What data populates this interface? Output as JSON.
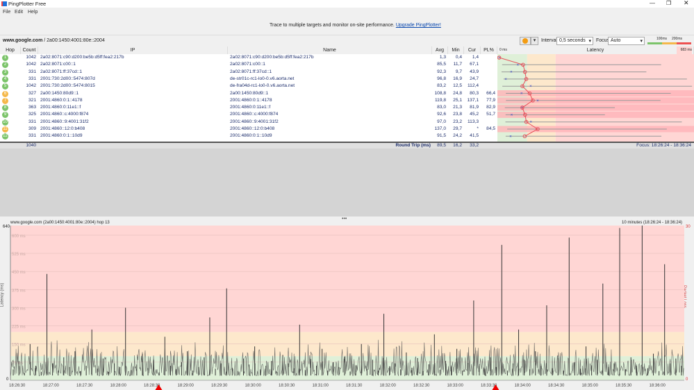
{
  "app": {
    "title": "PingPlotter Free",
    "menu": [
      "File",
      "Edit",
      "Help"
    ]
  },
  "banner": {
    "text": "Trace to multiple targets and monitor on-site performance.",
    "link": "Upgrade PingPlotter!"
  },
  "target": {
    "host": "www.google.com",
    "address": " / 2a00:1450:4001:80e::2004"
  },
  "toolbar": {
    "interval_label": "Interval",
    "interval_value": "0,5 seconds",
    "focus_label": "Focus",
    "focus_value": "Auto",
    "scale_100": "100ms",
    "scale_200": "200ms",
    "colors": {
      "good": "#7cc46a",
      "warn": "#f5b84a",
      "bad": "#ee5050"
    }
  },
  "columns": {
    "hop": "Hop",
    "count": "Count",
    "ip": "IP",
    "name": "Name",
    "avg": "Avg",
    "min": "Min",
    "cur": "Cur",
    "pl": "PL%",
    "latency": "Latency",
    "lat_min": "0 ms",
    "lat_max": "683 ms"
  },
  "hops": [
    {
      "hop": "1",
      "count": "1042",
      "ip": "2a02:8071:c90:d200:be5b:d5ff:fea2:217b",
      "name": "2a02:8071:c90:d200:be5b:d5ff:fea2:217b",
      "avg": "1,3",
      "min": "0,4",
      "cur": "1,4",
      "pl": "",
      "status": "good",
      "max_est": 2
    },
    {
      "hop": "2",
      "count": "1042",
      "ip": "2a02:8071:c00::1",
      "name": "2a02:8071:c00::1",
      "avg": "85,5",
      "min": "11,7",
      "cur": "67,1",
      "pl": "",
      "status": "good",
      "max_est": 572
    },
    {
      "hop": "3",
      "count": "331",
      "ip": "2a02:8071:ff:37cd::1",
      "name": "2a02:8071:ff:37cd::1",
      "avg": "92,3",
      "min": "9,7",
      "cur": "43,9",
      "pl": "",
      "status": "good",
      "max_est": 520
    },
    {
      "hop": "4",
      "count": "331",
      "ip": "2001:730:2d00::5474:807d",
      "name": "de-str01c-rc1-lo0-0.v6.aorta.net",
      "avg": "96,8",
      "min": "16,9",
      "cur": "24,7",
      "pl": "",
      "status": "good",
      "max_est": 663
    },
    {
      "hop": "5",
      "count": "1042",
      "ip": "2001:730:2d00::5474:8015",
      "name": "de-fra04d-rc1-lo0-0.v6.aorta.net",
      "avg": "83,2",
      "min": "12,5",
      "cur": "112,4",
      "pl": "",
      "status": "good",
      "max_est": 681
    },
    {
      "hop": "6",
      "count": "327",
      "ip": "2a00:1450:80d9::1",
      "name": "2a00:1450:80d9::1",
      "avg": "108,8",
      "min": "24,8",
      "cur": "80,3",
      "pl": "66,4",
      "status": "warn",
      "max_est": 606
    },
    {
      "hop": "7",
      "count": "321",
      "ip": "2001:4860:0:1::4178",
      "name": "2001:4860:0:1::4178",
      "avg": "119,8",
      "min": "25,1",
      "cur": "137,1",
      "pl": "77,9",
      "status": "warn",
      "max_est": 570
    },
    {
      "hop": "8",
      "count": "363",
      "ip": "2001:4860:0:11e1::f",
      "name": "2001:4860:0:11e1::f",
      "avg": "83,0",
      "min": "21,3",
      "cur": "81,9",
      "pl": "82,9",
      "status": "good",
      "max_est": 409
    },
    {
      "hop": "9",
      "count": "325",
      "ip": "2001:4860::c:4000:f874",
      "name": "2001:4860::c:4000:f874",
      "avg": "92,6",
      "min": "23,8",
      "cur": "45,2",
      "pl": "51,7",
      "status": "good",
      "max_est": 374
    },
    {
      "hop": "10",
      "count": "331",
      "ip": "2001:4860::9:4001:31f2",
      "name": "2001:4860::9:4001:31f2",
      "avg": "97,0",
      "min": "23,2",
      "cur": "113,3",
      "pl": "",
      "status": "good",
      "max_est": 645
    },
    {
      "hop": "11",
      "count": "309",
      "ip": "2001:4860::12:0:b408",
      "name": "2001:4860::12:0:b408",
      "avg": "137,0",
      "min": "29,7",
      "cur": "*",
      "pl": "84,5",
      "status": "warn",
      "max_est": 592
    },
    {
      "hop": "12",
      "count": "331",
      "ip": "2001:4860:0:1::10d9",
      "name": "2001:4860:0:1::10d9",
      "avg": "91,5",
      "min": "24,2",
      "cur": "41,5",
      "pl": "",
      "status": "good",
      "max_est": 573
    }
  ],
  "summary": {
    "count": "1040",
    "label": "Round Trip (ms)",
    "avg": "89,5",
    "min": "16,2",
    "cur": "33,2",
    "focus": "Focus: 18:26:24 - 18:36:24"
  },
  "graph": {
    "title": "www.google.com (2a00:1450:4001:80e::2004) hop 13",
    "range": "10 minutes (18:26:24 - 18:36:24)",
    "divider": "•••"
  },
  "chart_data": {
    "type": "line",
    "title": "www.google.com (2a00:1450:4001:80e::2004) hop 13",
    "ylabel": "Latency (ms)",
    "y2label": "Packet Loss %",
    "ylim": [
      0,
      640
    ],
    "y2lim": [
      0,
      30
    ],
    "y_top_label": "640",
    "y_bottom_label": "0",
    "y2_top_label": "30",
    "y2_bottom_label": "0",
    "y_gridlines": [
      "600 ms",
      "525 ms",
      "450 ms",
      "375 ms",
      "300 ms",
      "225 ms",
      "150 ms",
      "75 ms"
    ],
    "y_grid_values": [
      600,
      525,
      450,
      375,
      300,
      225,
      150,
      75
    ],
    "zones": [
      {
        "from": 0,
        "to": 100,
        "color": "#dff0d8"
      },
      {
        "from": 100,
        "to": 200,
        "color": "#fde8cc"
      },
      {
        "from": 200,
        "to": 640,
        "color": "#ffd6d4"
      }
    ],
    "x_start": "18:26:24",
    "x_end": "18:36:24",
    "x_ticks": [
      "18:26:30",
      "18:27:00",
      "18:27:30",
      "18:28:00",
      "18:28:30",
      "18:29:00",
      "18:29:30",
      "18:30:00",
      "18:30:30",
      "18:31:00",
      "18:31:30",
      "18:32:00",
      "18:32:30",
      "18:33:00",
      "18:33:30",
      "18:34:00",
      "18:34:30",
      "18:35:00",
      "18:35:30",
      "18:36:00"
    ],
    "packet_loss_markers": [
      "18:28:36",
      "18:33:36"
    ],
    "grid": true,
    "latency_samples_ms": [
      45,
      80,
      30,
      150,
      60,
      35,
      440,
      70,
      40,
      95,
      55,
      120,
      38,
      60,
      210,
      48,
      90,
      35,
      70,
      55,
      300,
      42,
      65,
      110,
      50,
      85,
      33,
      180,
      60,
      45,
      75,
      120,
      40,
      55,
      95,
      260,
      48,
      70,
      380,
      52,
      38,
      90,
      65,
      140,
      45,
      60,
      80,
      35,
      105,
      70,
      50,
      230,
      42,
      88,
      60,
      130,
      40,
      75,
      55,
      98,
      36,
      62,
      150,
      47,
      85,
      40,
      275,
      58,
      70,
      45,
      115,
      52,
      92,
      38,
      66,
      190,
      44,
      80,
      57,
      130,
      40,
      72,
      330,
      60,
      48,
      95,
      55,
      560,
      40,
      70,
      210,
      85,
      45,
      120,
      60,
      310,
      50,
      92,
      40,
      590,
      75,
      48,
      140,
      62,
      85,
      400,
      55,
      70,
      630,
      45,
      95,
      60,
      640,
      50,
      110,
      38,
      480,
      70,
      90,
      60
    ]
  }
}
